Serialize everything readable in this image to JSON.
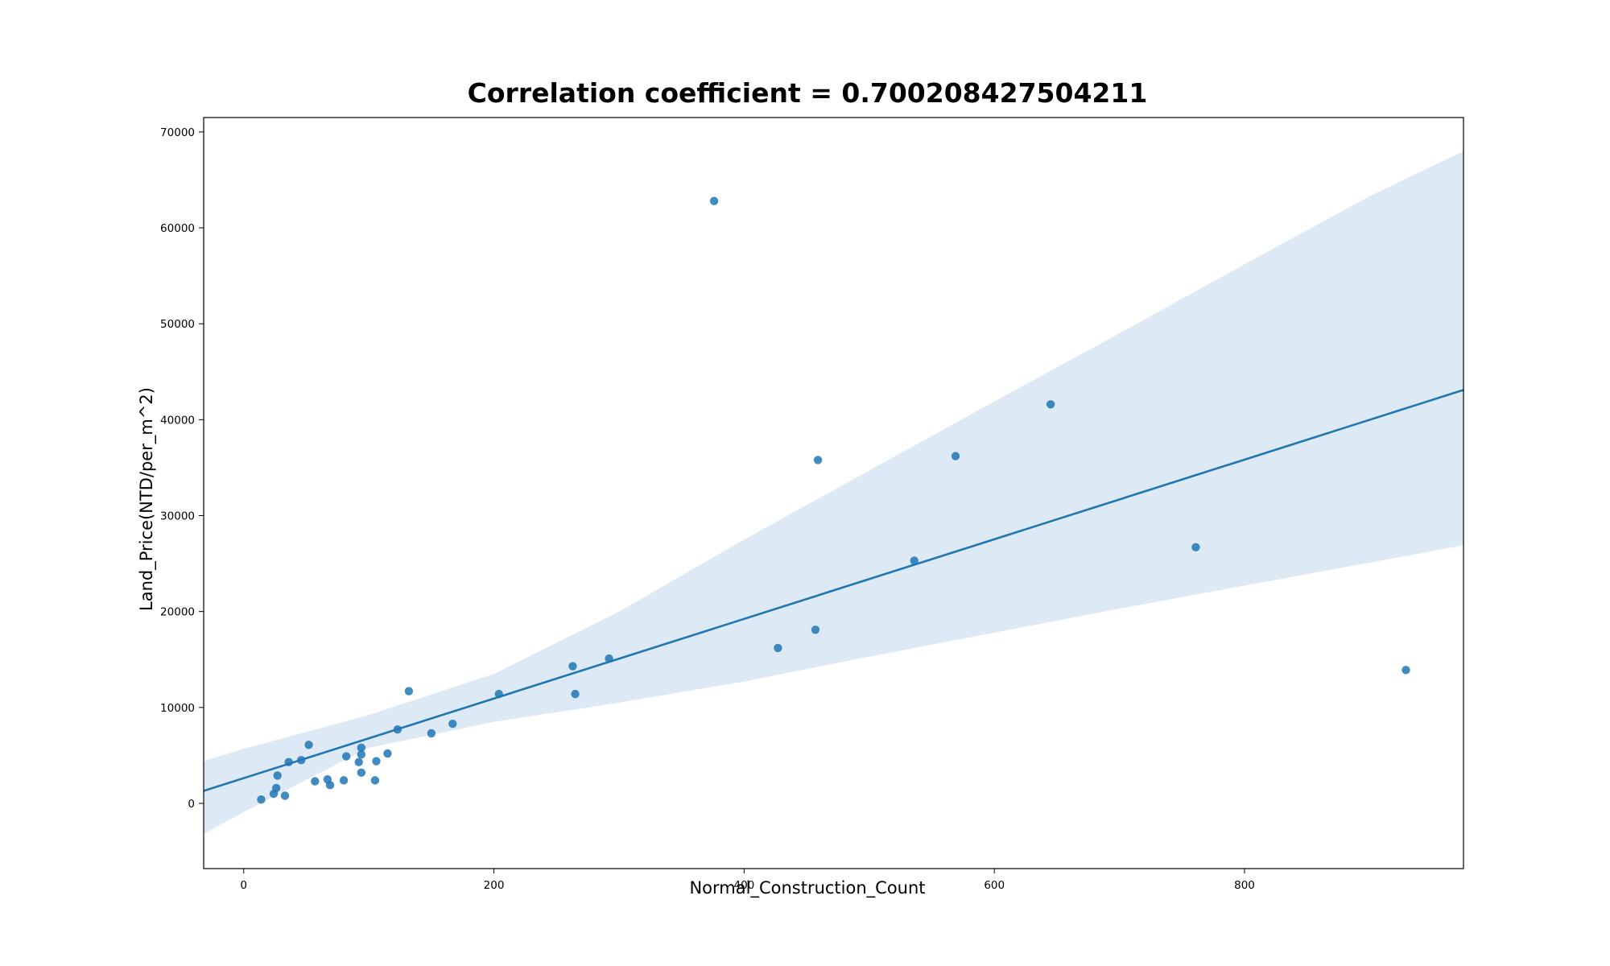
{
  "chart_data": {
    "type": "scatter",
    "title": "Correlation coefficient = 0.700208427504211",
    "xlabel": "Normal_Construction_Count",
    "ylabel": "Land_Price(NTD/per_m^2)",
    "xlim": [
      -32,
      975
    ],
    "ylim": [
      -6800,
      71500
    ],
    "xticks": [
      0,
      200,
      400,
      600,
      800
    ],
    "yticks": [
      0,
      10000,
      20000,
      30000,
      40000,
      50000,
      60000,
      70000
    ],
    "grid": false,
    "legend": "none",
    "colors": {
      "point": "#1f77b4",
      "line": "#1f77b4",
      "band": "#dde9f4"
    },
    "points": [
      {
        "x": 14,
        "y": 400
      },
      {
        "x": 24,
        "y": 1000
      },
      {
        "x": 26,
        "y": 1600
      },
      {
        "x": 27,
        "y": 2900
      },
      {
        "x": 33,
        "y": 800
      },
      {
        "x": 36,
        "y": 4300
      },
      {
        "x": 46,
        "y": 4500
      },
      {
        "x": 52,
        "y": 6100
      },
      {
        "x": 57,
        "y": 2300
      },
      {
        "x": 67,
        "y": 2500
      },
      {
        "x": 69,
        "y": 1900
      },
      {
        "x": 80,
        "y": 2400
      },
      {
        "x": 82,
        "y": 4900
      },
      {
        "x": 92,
        "y": 4300
      },
      {
        "x": 94,
        "y": 5100
      },
      {
        "x": 94,
        "y": 5800
      },
      {
        "x": 94,
        "y": 3200
      },
      {
        "x": 105,
        "y": 2400
      },
      {
        "x": 106,
        "y": 4400
      },
      {
        "x": 115,
        "y": 5200
      },
      {
        "x": 123,
        "y": 7700
      },
      {
        "x": 132,
        "y": 11700
      },
      {
        "x": 150,
        "y": 7300
      },
      {
        "x": 167,
        "y": 8300
      },
      {
        "x": 204,
        "y": 11400
      },
      {
        "x": 263,
        "y": 14300
      },
      {
        "x": 265,
        "y": 11400
      },
      {
        "x": 292,
        "y": 15100
      },
      {
        "x": 376,
        "y": 62800
      },
      {
        "x": 427,
        "y": 16200
      },
      {
        "x": 457,
        "y": 18100
      },
      {
        "x": 459,
        "y": 35800
      },
      {
        "x": 536,
        "y": 25300
      },
      {
        "x": 569,
        "y": 36200
      },
      {
        "x": 645,
        "y": 41600
      },
      {
        "x": 761,
        "y": 26700
      },
      {
        "x": 929,
        "y": 13900
      }
    ],
    "regression_line": {
      "x": [
        -32,
        975
      ],
      "y": [
        1300,
        43100
      ]
    },
    "confidence_band": {
      "x": [
        -32,
        0,
        100,
        200,
        300,
        400,
        500,
        600,
        700,
        800,
        900,
        975
      ],
      "upper": [
        4400,
        5700,
        9200,
        13500,
        20000,
        27500,
        34700,
        41900,
        49000,
        56200,
        63300,
        68000
      ],
      "lower": [
        -3200,
        -900,
        5800,
        8500,
        10500,
        12700,
        15300,
        17800,
        20300,
        22700,
        25100,
        26900
      ]
    }
  }
}
